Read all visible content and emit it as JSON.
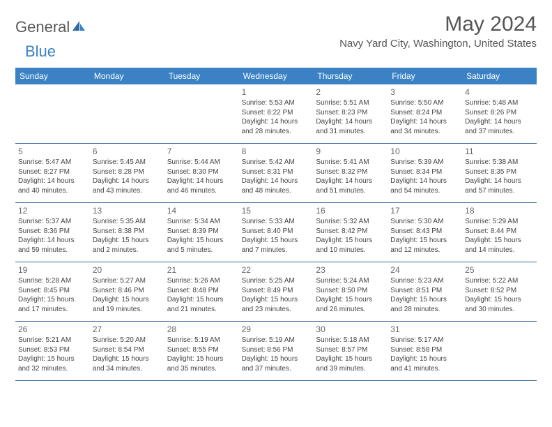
{
  "logo": {
    "part1": "General",
    "part2": "Blue"
  },
  "title": "May 2024",
  "location": "Navy Yard City, Washington, United States",
  "day_headers": [
    "Sunday",
    "Monday",
    "Tuesday",
    "Wednesday",
    "Thursday",
    "Friday",
    "Saturday"
  ],
  "colors": {
    "header_bg": "#3b82c4",
    "header_text": "#ffffff",
    "divider": "#3b6a9a",
    "title_text": "#555555",
    "body_text": "#444444",
    "daynum_text": "#666666",
    "logo_gray": "#5a5a5a",
    "logo_blue": "#3b82c4",
    "background": "#ffffff"
  },
  "typography": {
    "title_fontsize": 30,
    "location_fontsize": 15,
    "dayhead_fontsize": 12,
    "daynum_fontsize": 12,
    "body_fontsize": 10
  },
  "weeks": [
    [
      null,
      null,
      null,
      {
        "n": "1",
        "sunrise": "Sunrise: 5:53 AM",
        "sunset": "Sunset: 8:22 PM",
        "d1": "Daylight: 14 hours",
        "d2": "and 28 minutes."
      },
      {
        "n": "2",
        "sunrise": "Sunrise: 5:51 AM",
        "sunset": "Sunset: 8:23 PM",
        "d1": "Daylight: 14 hours",
        "d2": "and 31 minutes."
      },
      {
        "n": "3",
        "sunrise": "Sunrise: 5:50 AM",
        "sunset": "Sunset: 8:24 PM",
        "d1": "Daylight: 14 hours",
        "d2": "and 34 minutes."
      },
      {
        "n": "4",
        "sunrise": "Sunrise: 5:48 AM",
        "sunset": "Sunset: 8:26 PM",
        "d1": "Daylight: 14 hours",
        "d2": "and 37 minutes."
      }
    ],
    [
      {
        "n": "5",
        "sunrise": "Sunrise: 5:47 AM",
        "sunset": "Sunset: 8:27 PM",
        "d1": "Daylight: 14 hours",
        "d2": "and 40 minutes."
      },
      {
        "n": "6",
        "sunrise": "Sunrise: 5:45 AM",
        "sunset": "Sunset: 8:28 PM",
        "d1": "Daylight: 14 hours",
        "d2": "and 43 minutes."
      },
      {
        "n": "7",
        "sunrise": "Sunrise: 5:44 AM",
        "sunset": "Sunset: 8:30 PM",
        "d1": "Daylight: 14 hours",
        "d2": "and 46 minutes."
      },
      {
        "n": "8",
        "sunrise": "Sunrise: 5:42 AM",
        "sunset": "Sunset: 8:31 PM",
        "d1": "Daylight: 14 hours",
        "d2": "and 48 minutes."
      },
      {
        "n": "9",
        "sunrise": "Sunrise: 5:41 AM",
        "sunset": "Sunset: 8:32 PM",
        "d1": "Daylight: 14 hours",
        "d2": "and 51 minutes."
      },
      {
        "n": "10",
        "sunrise": "Sunrise: 5:39 AM",
        "sunset": "Sunset: 8:34 PM",
        "d1": "Daylight: 14 hours",
        "d2": "and 54 minutes."
      },
      {
        "n": "11",
        "sunrise": "Sunrise: 5:38 AM",
        "sunset": "Sunset: 8:35 PM",
        "d1": "Daylight: 14 hours",
        "d2": "and 57 minutes."
      }
    ],
    [
      {
        "n": "12",
        "sunrise": "Sunrise: 5:37 AM",
        "sunset": "Sunset: 8:36 PM",
        "d1": "Daylight: 14 hours",
        "d2": "and 59 minutes."
      },
      {
        "n": "13",
        "sunrise": "Sunrise: 5:35 AM",
        "sunset": "Sunset: 8:38 PM",
        "d1": "Daylight: 15 hours",
        "d2": "and 2 minutes."
      },
      {
        "n": "14",
        "sunrise": "Sunrise: 5:34 AM",
        "sunset": "Sunset: 8:39 PM",
        "d1": "Daylight: 15 hours",
        "d2": "and 5 minutes."
      },
      {
        "n": "15",
        "sunrise": "Sunrise: 5:33 AM",
        "sunset": "Sunset: 8:40 PM",
        "d1": "Daylight: 15 hours",
        "d2": "and 7 minutes."
      },
      {
        "n": "16",
        "sunrise": "Sunrise: 5:32 AM",
        "sunset": "Sunset: 8:42 PM",
        "d1": "Daylight: 15 hours",
        "d2": "and 10 minutes."
      },
      {
        "n": "17",
        "sunrise": "Sunrise: 5:30 AM",
        "sunset": "Sunset: 8:43 PM",
        "d1": "Daylight: 15 hours",
        "d2": "and 12 minutes."
      },
      {
        "n": "18",
        "sunrise": "Sunrise: 5:29 AM",
        "sunset": "Sunset: 8:44 PM",
        "d1": "Daylight: 15 hours",
        "d2": "and 14 minutes."
      }
    ],
    [
      {
        "n": "19",
        "sunrise": "Sunrise: 5:28 AM",
        "sunset": "Sunset: 8:45 PM",
        "d1": "Daylight: 15 hours",
        "d2": "and 17 minutes."
      },
      {
        "n": "20",
        "sunrise": "Sunrise: 5:27 AM",
        "sunset": "Sunset: 8:46 PM",
        "d1": "Daylight: 15 hours",
        "d2": "and 19 minutes."
      },
      {
        "n": "21",
        "sunrise": "Sunrise: 5:26 AM",
        "sunset": "Sunset: 8:48 PM",
        "d1": "Daylight: 15 hours",
        "d2": "and 21 minutes."
      },
      {
        "n": "22",
        "sunrise": "Sunrise: 5:25 AM",
        "sunset": "Sunset: 8:49 PM",
        "d1": "Daylight: 15 hours",
        "d2": "and 23 minutes."
      },
      {
        "n": "23",
        "sunrise": "Sunrise: 5:24 AM",
        "sunset": "Sunset: 8:50 PM",
        "d1": "Daylight: 15 hours",
        "d2": "and 26 minutes."
      },
      {
        "n": "24",
        "sunrise": "Sunrise: 5:23 AM",
        "sunset": "Sunset: 8:51 PM",
        "d1": "Daylight: 15 hours",
        "d2": "and 28 minutes."
      },
      {
        "n": "25",
        "sunrise": "Sunrise: 5:22 AM",
        "sunset": "Sunset: 8:52 PM",
        "d1": "Daylight: 15 hours",
        "d2": "and 30 minutes."
      }
    ],
    [
      {
        "n": "26",
        "sunrise": "Sunrise: 5:21 AM",
        "sunset": "Sunset: 8:53 PM",
        "d1": "Daylight: 15 hours",
        "d2": "and 32 minutes."
      },
      {
        "n": "27",
        "sunrise": "Sunrise: 5:20 AM",
        "sunset": "Sunset: 8:54 PM",
        "d1": "Daylight: 15 hours",
        "d2": "and 34 minutes."
      },
      {
        "n": "28",
        "sunrise": "Sunrise: 5:19 AM",
        "sunset": "Sunset: 8:55 PM",
        "d1": "Daylight: 15 hours",
        "d2": "and 35 minutes."
      },
      {
        "n": "29",
        "sunrise": "Sunrise: 5:19 AM",
        "sunset": "Sunset: 8:56 PM",
        "d1": "Daylight: 15 hours",
        "d2": "and 37 minutes."
      },
      {
        "n": "30",
        "sunrise": "Sunrise: 5:18 AM",
        "sunset": "Sunset: 8:57 PM",
        "d1": "Daylight: 15 hours",
        "d2": "and 39 minutes."
      },
      {
        "n": "31",
        "sunrise": "Sunrise: 5:17 AM",
        "sunset": "Sunset: 8:58 PM",
        "d1": "Daylight: 15 hours",
        "d2": "and 41 minutes."
      },
      null
    ]
  ]
}
